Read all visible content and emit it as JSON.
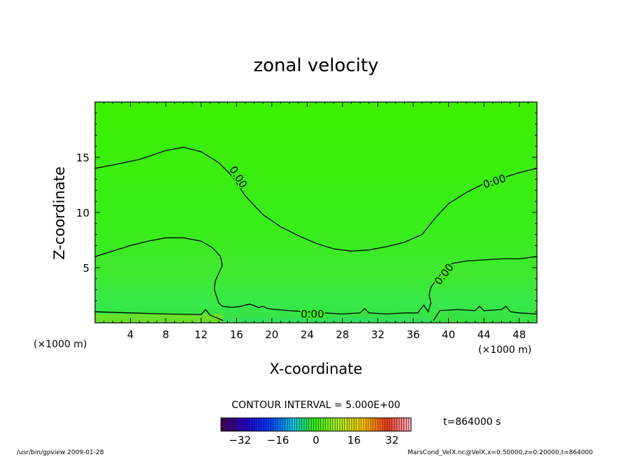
{
  "chart_data": {
    "type": "heatmap",
    "title": "zonal velocity",
    "xlabel": "X-coordinate",
    "ylabel": "Z-coordinate",
    "x_unit": "(×1000 m)",
    "y_unit": "(×1000 m)",
    "xlim": [
      0,
      50
    ],
    "ylim": [
      0,
      20
    ],
    "x_ticks": [
      4,
      8,
      12,
      16,
      20,
      24,
      28,
      32,
      36,
      40,
      44,
      48
    ],
    "y_ticks": [
      5,
      10,
      15
    ],
    "x_tick_labels": [
      "4",
      "8",
      "12",
      "16",
      "20",
      "24",
      "28",
      "32",
      "36",
      "40",
      "44",
      "48"
    ],
    "y_tick_labels": [
      "5",
      "10",
      "15"
    ],
    "contour_interval_label": "CONTOUR INTERVAL = 5.000E+00",
    "time_label": "t=864000 s",
    "contour_labels": [
      "0.00",
      "0.00",
      "0.00",
      "0.00"
    ],
    "contours": [
      {
        "level": 0,
        "points": [
          [
            0,
            14
          ],
          [
            2,
            14.3
          ],
          [
            5,
            14.8
          ],
          [
            8,
            15.6
          ],
          [
            10,
            15.9
          ],
          [
            12,
            15.5
          ],
          [
            14,
            14.5
          ],
          [
            15.5,
            13.3
          ],
          [
            17,
            11.5
          ],
          [
            19,
            9.8
          ],
          [
            21,
            8.7
          ],
          [
            23,
            7.9
          ],
          [
            25,
            7.2
          ],
          [
            27,
            6.7
          ],
          [
            29,
            6.5
          ],
          [
            31,
            6.6
          ],
          [
            33,
            6.9
          ],
          [
            35,
            7.3
          ],
          [
            37,
            8
          ],
          [
            38.5,
            9.5
          ],
          [
            40,
            10.8
          ],
          [
            42,
            11.8
          ],
          [
            44,
            12.6
          ],
          [
            46,
            13.1
          ],
          [
            48,
            13.6
          ],
          [
            50,
            14
          ]
        ]
      },
      {
        "level": 0,
        "points": [
          [
            0,
            6
          ],
          [
            2,
            6.5
          ],
          [
            4,
            7
          ],
          [
            6,
            7.4
          ],
          [
            8,
            7.7
          ],
          [
            10,
            7.7
          ],
          [
            12,
            7.4
          ],
          [
            13.3,
            6.8
          ],
          [
            14.2,
            6
          ],
          [
            14.4,
            5.2
          ],
          [
            14,
            4.5
          ],
          [
            13.6,
            3.8
          ],
          [
            13.5,
            3
          ],
          [
            13.8,
            2.3
          ],
          [
            14,
            1.8
          ],
          [
            14.4,
            1.5
          ],
          [
            15.5,
            1.4
          ],
          [
            16.5,
            1.5
          ],
          [
            17.5,
            1.7
          ],
          [
            18.5,
            1.4
          ],
          [
            19,
            1.5
          ],
          [
            19.5,
            1.3
          ],
          [
            20.5,
            1.2
          ],
          [
            22,
            1.1
          ],
          [
            24,
            1.0
          ],
          [
            26,
            0.9
          ],
          [
            28,
            0.8
          ],
          [
            30,
            0.9
          ],
          [
            30.5,
            1.3
          ],
          [
            31,
            0.9
          ],
          [
            33,
            0.8
          ],
          [
            35,
            0.9
          ],
          [
            36.5,
            0.9
          ],
          [
            37.2,
            1.6
          ],
          [
            37.7,
            1.0
          ],
          [
            38,
            1.8
          ],
          [
            37.8,
            2.5
          ],
          [
            38,
            3.2
          ],
          [
            38.7,
            4
          ],
          [
            39.3,
            4.6
          ],
          [
            39.7,
            5.1
          ],
          [
            40.5,
            5.4
          ],
          [
            42,
            5.6
          ],
          [
            44,
            5.7
          ],
          [
            46,
            5.8
          ],
          [
            48,
            5.8
          ],
          [
            50,
            6
          ]
        ]
      },
      {
        "level": 0,
        "points": [
          [
            0,
            1.0
          ],
          [
            4,
            0.9
          ],
          [
            8,
            0.8
          ],
          [
            12,
            0.75
          ],
          [
            12.5,
            1.2
          ],
          [
            13,
            0.7
          ],
          [
            14.5,
            0.2
          ]
        ]
      },
      {
        "level": 0,
        "points": [
          [
            38.3,
            0.2
          ],
          [
            39,
            1.1
          ],
          [
            41,
            1.2
          ],
          [
            43,
            1.1
          ],
          [
            43.5,
            1.5
          ],
          [
            44,
            1.1
          ],
          [
            46,
            1.2
          ],
          [
            46.5,
            1.5
          ],
          [
            47,
            1.0
          ],
          [
            48,
            0.9
          ],
          [
            50,
            0.8
          ]
        ]
      }
    ],
    "colorbar": {
      "ticks": [
        -32,
        -16,
        0,
        16,
        32
      ],
      "tick_labels": [
        "−32",
        "−16",
        "0",
        "16",
        "32"
      ],
      "range": [
        -40,
        40
      ]
    }
  },
  "footer": {
    "left": "/usr/bin/gpview   2009-01-28",
    "right": "MarsCond_VelX.nc@VelX,x=0:50000,z=0:20000,t=864000"
  }
}
